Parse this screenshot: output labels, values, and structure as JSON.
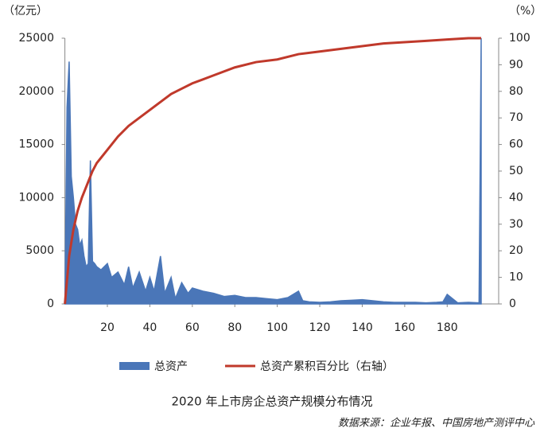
{
  "chart_data": {
    "type": "area-line",
    "title": "2020 年上市房企总资产规模分布情况",
    "source": "数据来源：企业年报、中国房地产测评中心",
    "y_unit": "（亿元）",
    "y2_unit": "（%）",
    "xlim": [
      0,
      196
    ],
    "xticks": [
      20,
      40,
      60,
      80,
      100,
      120,
      140,
      160,
      180
    ],
    "ylim": [
      0,
      25000
    ],
    "yticks": [
      0,
      5000,
      10000,
      15000,
      20000,
      25000
    ],
    "y2lim": [
      0,
      100
    ],
    "y2ticks": [
      0,
      10,
      20,
      30,
      40,
      50,
      60,
      70,
      80,
      90,
      100
    ],
    "series": [
      {
        "name": "总资产",
        "kind": "area",
        "color": "#4a76b8",
        "x": [
          0,
          1,
          2,
          3,
          4,
          5,
          6,
          7,
          8,
          9,
          10,
          11,
          12,
          13,
          14,
          15,
          17,
          20,
          22,
          25,
          28,
          30,
          32,
          35,
          38,
          40,
          42,
          45,
          47,
          50,
          52,
          55,
          58,
          60,
          65,
          70,
          75,
          80,
          85,
          90,
          95,
          100,
          105,
          110,
          112,
          115,
          120,
          125,
          130,
          135,
          140,
          145,
          150,
          155,
          160,
          165,
          170,
          175,
          178,
          180,
          185,
          190,
          195,
          196
        ],
        "values": [
          0,
          18500,
          22800,
          12000,
          10000,
          7500,
          7000,
          5500,
          6000,
          4500,
          3500,
          3800,
          13500,
          4000,
          3800,
          3500,
          3200,
          3800,
          2500,
          3000,
          1800,
          3500,
          1500,
          3000,
          1200,
          2500,
          1200,
          4500,
          1000,
          2500,
          500,
          2000,
          1000,
          1500,
          1200,
          1000,
          700,
          800,
          600,
          600,
          500,
          400,
          600,
          1200,
          300,
          200,
          150,
          200,
          300,
          350,
          400,
          300,
          200,
          150,
          150,
          150,
          100,
          150,
          200,
          900,
          100,
          150,
          100,
          25000
        ]
      },
      {
        "name": "总资产累积百分比（右轴）",
        "kind": "line",
        "axis": "y2",
        "color": "#c0392b",
        "x": [
          0,
          2,
          4,
          6,
          8,
          10,
          13,
          15,
          20,
          25,
          30,
          35,
          40,
          45,
          50,
          55,
          60,
          70,
          80,
          90,
          100,
          110,
          120,
          130,
          140,
          150,
          160,
          170,
          180,
          190,
          196
        ],
        "values": [
          0,
          18,
          28,
          35,
          40,
          44,
          50,
          53,
          58,
          63,
          67,
          70,
          73,
          76,
          79,
          81,
          83,
          86,
          89,
          91,
          92,
          94,
          95,
          96,
          97,
          98,
          98.5,
          99,
          99.5,
          100,
          100
        ]
      }
    ]
  }
}
